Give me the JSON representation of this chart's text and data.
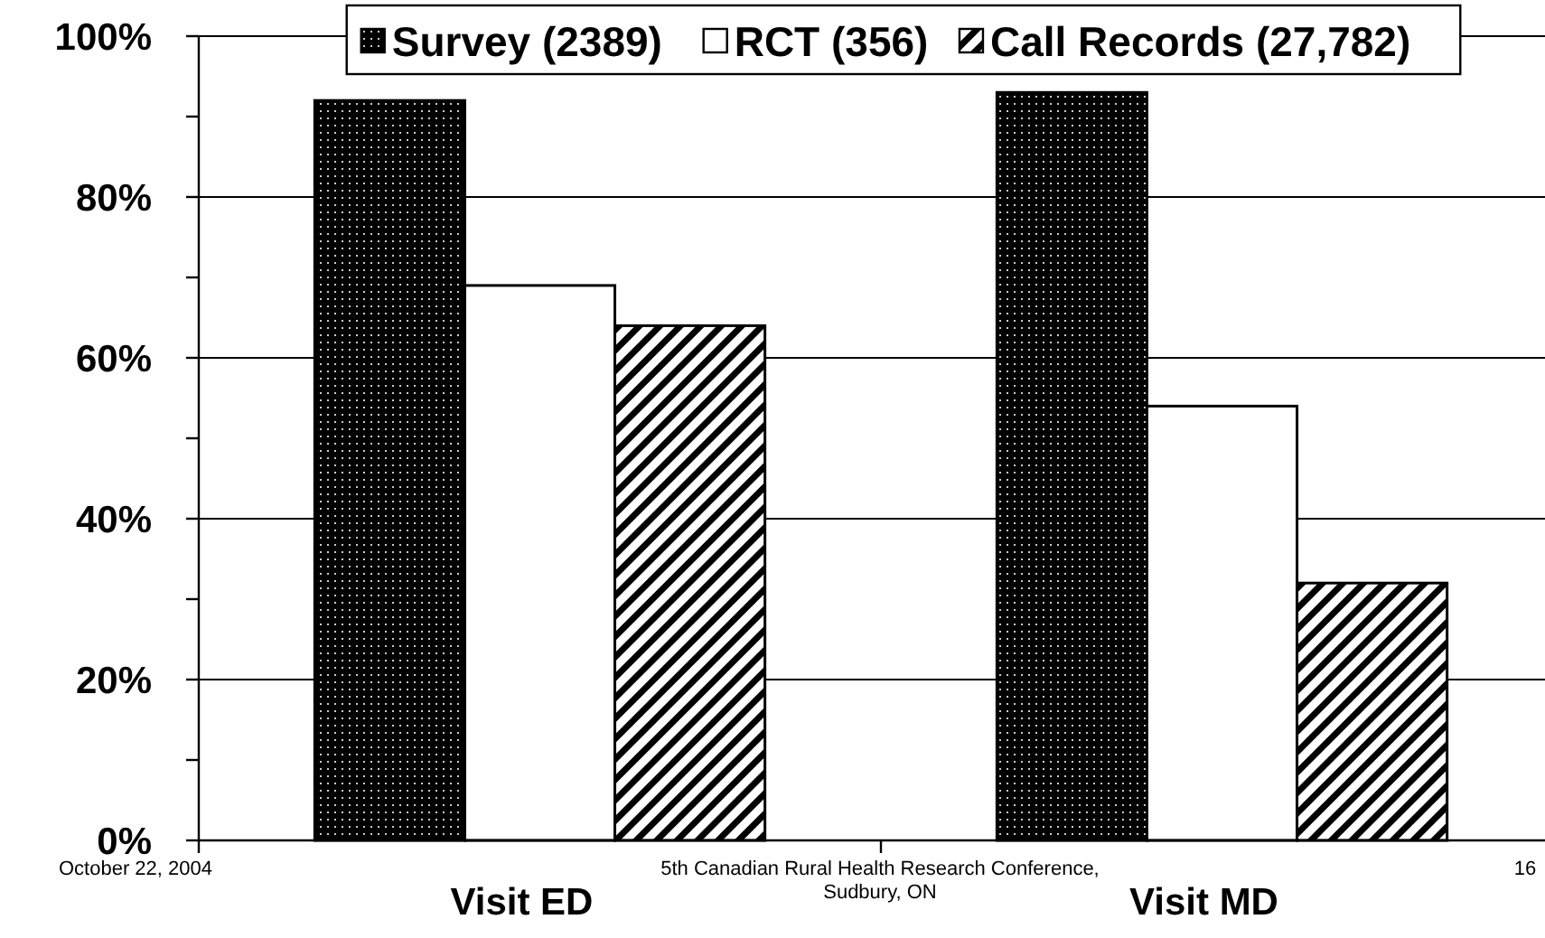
{
  "chart_data": {
    "type": "bar",
    "categories": [
      "Visit ED",
      "Visit MD"
    ],
    "series": [
      {
        "name": "Survey (2389)",
        "color": "#000000",
        "values": [
          92,
          93
        ]
      },
      {
        "name": "RCT (356)",
        "color": "#ffffff",
        "values": [
          69,
          54
        ]
      },
      {
        "name": "Call Records (27,782)",
        "color": "#000000",
        "values": [
          64,
          32
        ]
      }
    ],
    "ylim": [
      0,
      100
    ],
    "yticks": [
      {
        "value": 0,
        "label": "0%"
      },
      {
        "value": 10,
        "label": null
      },
      {
        "value": 20,
        "label": "20%"
      },
      {
        "value": 30,
        "label": null
      },
      {
        "value": 40,
        "label": "40%"
      },
      {
        "value": 50,
        "label": null
      },
      {
        "value": 60,
        "label": "60%"
      },
      {
        "value": 70,
        "label": null
      },
      {
        "value": 80,
        "label": "80%"
      },
      {
        "value": 90,
        "label": null
      },
      {
        "value": 100,
        "label": "100%"
      }
    ],
    "grid": "y",
    "legend": "top",
    "annotations": [
      "October 22, 2004",
      "5th Canadian Rural Health Research Conference,\nSudbury, ON",
      "16"
    ]
  }
}
